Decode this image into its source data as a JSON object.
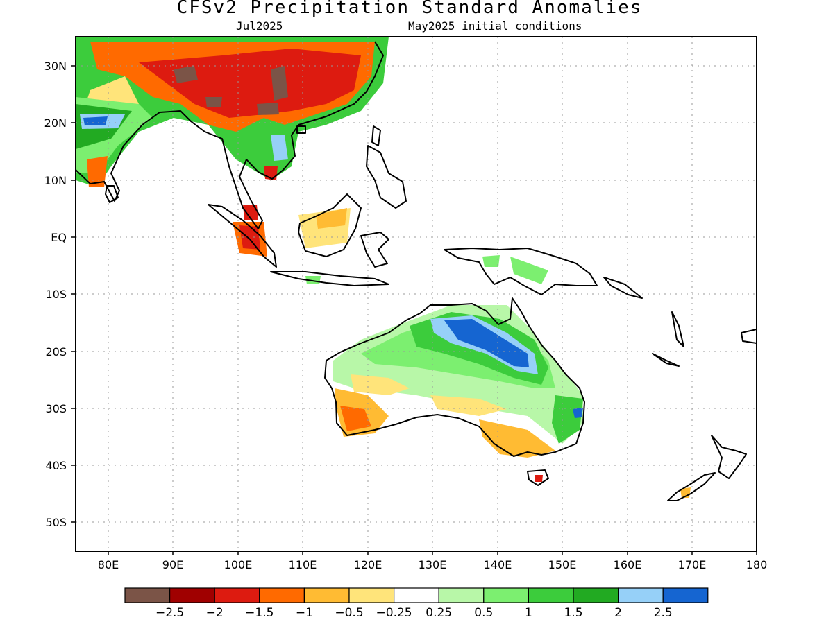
{
  "title": "CFSv2 Precipitation Standard Anomalies",
  "subtitle_left": "Jul2025",
  "subtitle_right": "May2025 initial conditions",
  "lon_labels": [
    "80E",
    "90E",
    "100E",
    "110E",
    "120E",
    "130E",
    "140E",
    "150E",
    "160E",
    "170E",
    "180"
  ],
  "lat_labels": [
    "30N",
    "20N",
    "10N",
    "EQ",
    "10S",
    "20S",
    "30S",
    "40S",
    "50S"
  ],
  "colorbar": {
    "colors": [
      "#7b5447",
      "#a00000",
      "#dd1b10",
      "#ff6a00",
      "#ffbb33",
      "#ffe47a",
      "#ffffff",
      "#b8f7a8",
      "#7cef70",
      "#3ccc3c",
      "#22aa22",
      "#96d0f8",
      "#1565d1"
    ],
    "labels": [
      "−2.5",
      "−2",
      "−1.5",
      "−1",
      "−0.5",
      "−0.25",
      "0.25",
      "0.5",
      "1",
      "1.5",
      "2",
      "2.5"
    ]
  },
  "colors": {
    "land_outline": "#000000",
    "grid": "#999999",
    "frame": "#000000"
  }
}
